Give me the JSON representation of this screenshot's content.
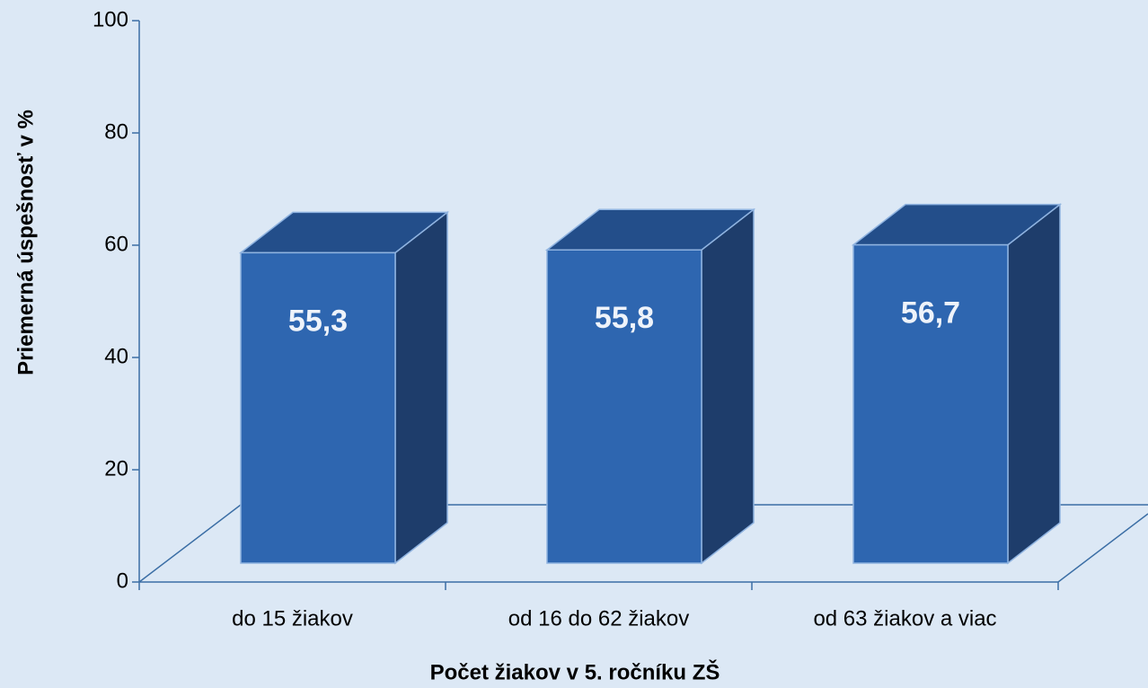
{
  "chart_data": {
    "type": "bar3d",
    "categories": [
      "do 15 žiakov",
      "od 16 do 62 žiakov",
      "od 63 žiakov a viac"
    ],
    "values": [
      55.3,
      55.8,
      56.7
    ],
    "value_labels": [
      "55,3",
      "55,8",
      "56,7"
    ],
    "color": "#2e66b0",
    "x_label": "Počet žiakov v 5. ročníku ZŠ",
    "y_label": "Priemerná úspešnosť v %",
    "ylim": [
      0,
      100
    ],
    "yticks": [
      0,
      20,
      40,
      60,
      80,
      100
    ]
  }
}
